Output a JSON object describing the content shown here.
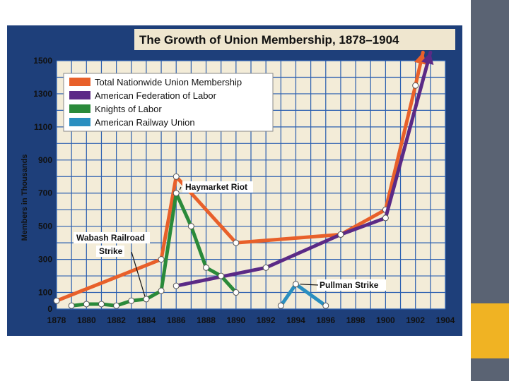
{
  "chart_data": {
    "type": "line",
    "title": "The Growth of Union Membership, 1878–1904",
    "xlabel": "",
    "ylabel": "Members in Thousands",
    "xlim": [
      1878,
      1904
    ],
    "ylim": [
      0,
      1500
    ],
    "x_ticks": [
      "1878",
      "1880",
      "1882",
      "1884",
      "1886",
      "1888",
      "1890",
      "1892",
      "1894",
      "1896",
      "1898",
      "1900",
      "1902",
      "1904"
    ],
    "y_ticks": [
      "0",
      "100",
      "300",
      "500",
      "700",
      "900",
      "1100",
      "1300",
      "1500"
    ],
    "grid": true,
    "legend_position": "top-left",
    "series": [
      {
        "name": "Total Nationwide Union Membership",
        "color": "#e8602a",
        "points": [
          [
            1878,
            50
          ],
          [
            1885,
            300
          ],
          [
            1886,
            800
          ],
          [
            1890,
            400
          ],
          [
            1897,
            450
          ],
          [
            1900,
            600
          ],
          [
            1902,
            1350
          ],
          [
            1902.5,
            1550
          ]
        ]
      },
      {
        "name": "American Federation of Labor",
        "color": "#5b2a86",
        "points": [
          [
            1886,
            140
          ],
          [
            1892,
            250
          ],
          [
            1897,
            450
          ],
          [
            1900,
            550
          ],
          [
            1903,
            1550
          ]
        ]
      },
      {
        "name": "Knights of Labor",
        "color": "#2a8a3a",
        "points": [
          [
            1879,
            20
          ],
          [
            1880,
            30
          ],
          [
            1881,
            30
          ],
          [
            1882,
            20
          ],
          [
            1883,
            50
          ],
          [
            1884,
            60
          ],
          [
            1885,
            110
          ],
          [
            1886,
            700
          ],
          [
            1887,
            500
          ],
          [
            1888,
            250
          ],
          [
            1889,
            200
          ],
          [
            1890,
            100
          ]
        ]
      },
      {
        "name": "American Railway Union",
        "color": "#2a8fc0",
        "points": [
          [
            1893,
            20
          ],
          [
            1894,
            150
          ],
          [
            1896,
            20
          ]
        ]
      }
    ],
    "annotations": [
      {
        "text": "Haymarket Riot",
        "x": 1886,
        "y": 750
      },
      {
        "text": "Wabash Railroad",
        "x": 1884,
        "y": 120
      },
      {
        "text": "Strike",
        "x": 1884,
        "y": 120
      },
      {
        "text": "Pullman Strike",
        "x": 1894,
        "y": 150
      }
    ]
  }
}
